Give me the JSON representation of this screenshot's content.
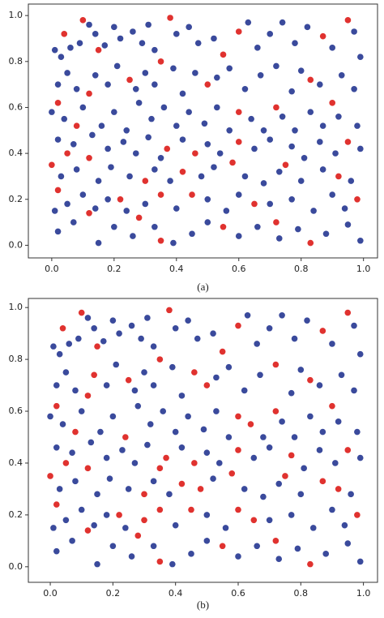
{
  "chart_data": [
    {
      "type": "scatter",
      "caption": "(a)",
      "xlim": [
        -0.075,
        1.045
      ],
      "ylim": [
        -0.055,
        1.05
      ],
      "xticks": [
        {
          "value": 0,
          "label": "0.0"
        },
        0.2,
        0.4,
        0.6,
        0.8,
        {
          "value": 1,
          "label": "1.0"
        }
      ],
      "yticks": [
        {
          "value": 0,
          "label": "0.0"
        },
        0.2,
        0.4,
        0.6,
        0.8,
        {
          "value": 1,
          "label": "1.0"
        }
      ],
      "series": [
        {
          "color": "#3a4a9c",
          "x": [
            0.01,
            0.03,
            0.06,
            0.09,
            0.12,
            0.14,
            0.17,
            0.2,
            0.22,
            0.26,
            0.29,
            0.31,
            0.33,
            0.4,
            0.44,
            0.47,
            0.52,
            0.63,
            0.66,
            0.7,
            0.74,
            0.78,
            0.82,
            0.9,
            0.97,
            0.99,
            0.02,
            0.05,
            0.08,
            0.14,
            0.18,
            0.21,
            0.27,
            0.3,
            0.33,
            0.39,
            0.42,
            0.46,
            0.53,
            0.57,
            0.62,
            0.67,
            0.72,
            0.77,
            0.8,
            0.86,
            0.93,
            0.97,
            0.0,
            0.04,
            0.1,
            0.16,
            0.2,
            0.24,
            0.28,
            0.32,
            0.36,
            0.4,
            0.44,
            0.49,
            0.53,
            0.57,
            0.64,
            0.68,
            0.74,
            0.78,
            0.83,
            0.87,
            0.92,
            0.98,
            0.02,
            0.07,
            0.13,
            0.18,
            0.23,
            0.27,
            0.31,
            0.35,
            0.42,
            0.5,
            0.54,
            0.65,
            0.7,
            0.77,
            0.81,
            0.86,
            0.91,
            0.99,
            0.03,
            0.08,
            0.15,
            0.19,
            0.25,
            0.33,
            0.38,
            0.48,
            0.52,
            0.62,
            0.68,
            0.73,
            0.8,
            0.87,
            0.96,
            0.01,
            0.05,
            0.1,
            0.14,
            0.18,
            0.24,
            0.3,
            0.4,
            0.5,
            0.56,
            0.6,
            0.7,
            0.77,
            0.84,
            0.9,
            0.94,
            0.02,
            0.07,
            0.15,
            0.2,
            0.26,
            0.33,
            0.39,
            0.45,
            0.5,
            0.6,
            0.66,
            0.73,
            0.79,
            0.88,
            0.95,
            0.99
          ],
          "values": [
            0.85,
            0.82,
            0.86,
            0.88,
            0.96,
            0.92,
            0.87,
            0.95,
            0.9,
            0.93,
            0.88,
            0.96,
            0.85,
            0.92,
            0.95,
            0.88,
            0.9,
            0.97,
            0.86,
            0.92,
            0.97,
            0.88,
            0.95,
            0.86,
            0.93,
            0.82,
            0.7,
            0.75,
            0.68,
            0.74,
            0.7,
            0.78,
            0.68,
            0.75,
            0.7,
            0.77,
            0.66,
            0.75,
            0.73,
            0.77,
            0.68,
            0.74,
            0.78,
            0.67,
            0.76,
            0.7,
            0.74,
            0.68,
            0.58,
            0.55,
            0.6,
            0.52,
            0.58,
            0.5,
            0.62,
            0.55,
            0.6,
            0.52,
            0.58,
            0.53,
            0.6,
            0.5,
            0.55,
            0.5,
            0.56,
            0.5,
            0.58,
            0.52,
            0.56,
            0.52,
            0.46,
            0.44,
            0.48,
            0.42,
            0.45,
            0.4,
            0.47,
            0.38,
            0.46,
            0.44,
            0.4,
            0.42,
            0.46,
            0.43,
            0.38,
            0.45,
            0.4,
            0.42,
            0.3,
            0.33,
            0.28,
            0.34,
            0.3,
            0.33,
            0.28,
            0.3,
            0.34,
            0.3,
            0.27,
            0.32,
            0.28,
            0.33,
            0.28,
            0.15,
            0.18,
            0.22,
            0.16,
            0.2,
            0.15,
            0.18,
            0.16,
            0.2,
            0.15,
            0.22,
            0.18,
            0.2,
            0.15,
            0.22,
            0.16,
            0.06,
            0.1,
            0.01,
            0.08,
            0.04,
            0.08,
            0.01,
            0.05,
            0.1,
            0.04,
            0.08,
            0.03,
            0.07,
            0.05,
            0.09,
            0.02
          ]
        },
        {
          "color": "#e0322f",
          "x": [
            0.1,
            0.38,
            0.95,
            0.04,
            0.6,
            0.87,
            0.15,
            0.35,
            0.55,
            0.25,
            0.5,
            0.83,
            0.12,
            0.02,
            0.72,
            0.6,
            0.9,
            0.08,
            0.37,
            0.05,
            0.6,
            0.95,
            0.12,
            0.46,
            0.58,
            0.0,
            0.75,
            0.42,
            0.92,
            0.3,
            0.02,
            0.22,
            0.35,
            0.45,
            0.65,
            0.98,
            0.28,
            0.55,
            0.72,
            0.35,
            0.83,
            0.12
          ],
          "values": [
            0.98,
            0.99,
            0.98,
            0.92,
            0.93,
            0.91,
            0.85,
            0.8,
            0.83,
            0.72,
            0.7,
            0.72,
            0.66,
            0.62,
            0.6,
            0.58,
            0.62,
            0.52,
            0.42,
            0.4,
            0.45,
            0.45,
            0.38,
            0.4,
            0.36,
            0.35,
            0.35,
            0.32,
            0.3,
            0.28,
            0.24,
            0.2,
            0.22,
            0.22,
            0.18,
            0.2,
            0.12,
            0.08,
            0.1,
            0.02,
            0.01,
            0.14
          ]
        }
      ]
    },
    {
      "type": "scatter",
      "caption": "(b)",
      "xlim": [
        -0.07,
        1.045
      ],
      "ylim": [
        -0.06,
        1.035
      ],
      "xticks": [
        {
          "value": 0,
          "label": "0.0"
        },
        0.2,
        0.4,
        0.6,
        0.8,
        {
          "value": 1,
          "label": "1.0"
        }
      ],
      "yticks": [
        {
          "value": 0,
          "label": "0.0"
        },
        0.2,
        0.4,
        0.6,
        0.8,
        {
          "value": 1,
          "label": "1.0"
        }
      ],
      "series": [
        {
          "color": "#3a4a9c",
          "x": [
            0.01,
            0.03,
            0.06,
            0.09,
            0.12,
            0.14,
            0.17,
            0.2,
            0.22,
            0.26,
            0.29,
            0.31,
            0.33,
            0.4,
            0.44,
            0.47,
            0.52,
            0.63,
            0.66,
            0.7,
            0.74,
            0.78,
            0.82,
            0.9,
            0.97,
            0.99,
            0.02,
            0.05,
            0.08,
            0.18,
            0.21,
            0.27,
            0.3,
            0.33,
            0.39,
            0.42,
            0.53,
            0.57,
            0.62,
            0.67,
            0.77,
            0.8,
            0.86,
            0.93,
            0.97,
            0.0,
            0.04,
            0.1,
            0.16,
            0.2,
            0.28,
            0.32,
            0.36,
            0.4,
            0.44,
            0.49,
            0.53,
            0.57,
            0.68,
            0.74,
            0.78,
            0.83,
            0.87,
            0.92,
            0.98,
            0.02,
            0.07,
            0.13,
            0.18,
            0.23,
            0.27,
            0.31,
            0.42,
            0.5,
            0.54,
            0.65,
            0.7,
            0.81,
            0.86,
            0.91,
            0.99,
            0.03,
            0.08,
            0.15,
            0.19,
            0.25,
            0.33,
            0.38,
            0.52,
            0.62,
            0.68,
            0.73,
            0.8,
            0.96,
            0.01,
            0.05,
            0.1,
            0.14,
            0.18,
            0.24,
            0.4,
            0.5,
            0.56,
            0.7,
            0.77,
            0.84,
            0.9,
            0.94,
            0.02,
            0.07,
            0.15,
            0.2,
            0.26,
            0.33,
            0.39,
            0.45,
            0.5,
            0.6,
            0.66,
            0.73,
            0.79,
            0.88,
            0.95,
            0.99
          ],
          "values": [
            0.85,
            0.82,
            0.86,
            0.88,
            0.96,
            0.92,
            0.87,
            0.95,
            0.9,
            0.93,
            0.88,
            0.96,
            0.85,
            0.92,
            0.95,
            0.88,
            0.9,
            0.97,
            0.86,
            0.92,
            0.97,
            0.88,
            0.95,
            0.86,
            0.93,
            0.82,
            0.7,
            0.75,
            0.68,
            0.7,
            0.78,
            0.68,
            0.75,
            0.7,
            0.77,
            0.66,
            0.73,
            0.77,
            0.68,
            0.74,
            0.67,
            0.76,
            0.7,
            0.74,
            0.68,
            0.58,
            0.55,
            0.6,
            0.52,
            0.58,
            0.62,
            0.55,
            0.6,
            0.52,
            0.58,
            0.53,
            0.6,
            0.5,
            0.5,
            0.56,
            0.5,
            0.58,
            0.52,
            0.56,
            0.52,
            0.46,
            0.44,
            0.48,
            0.42,
            0.45,
            0.4,
            0.47,
            0.46,
            0.44,
            0.4,
            0.42,
            0.46,
            0.38,
            0.45,
            0.4,
            0.42,
            0.3,
            0.33,
            0.28,
            0.34,
            0.3,
            0.33,
            0.28,
            0.34,
            0.3,
            0.27,
            0.32,
            0.28,
            0.28,
            0.15,
            0.18,
            0.22,
            0.16,
            0.2,
            0.15,
            0.16,
            0.2,
            0.15,
            0.18,
            0.2,
            0.15,
            0.22,
            0.16,
            0.06,
            0.1,
            0.01,
            0.08,
            0.04,
            0.08,
            0.01,
            0.05,
            0.1,
            0.04,
            0.08,
            0.03,
            0.07,
            0.05,
            0.09,
            0.02
          ]
        },
        {
          "color": "#e0322f",
          "x": [
            0.1,
            0.38,
            0.95,
            0.04,
            0.6,
            0.87,
            0.15,
            0.35,
            0.55,
            0.25,
            0.5,
            0.83,
            0.12,
            0.02,
            0.72,
            0.6,
            0.9,
            0.08,
            0.37,
            0.05,
            0.6,
            0.95,
            0.12,
            0.46,
            0.58,
            0.0,
            0.75,
            0.42,
            0.92,
            0.3,
            0.02,
            0.22,
            0.35,
            0.45,
            0.65,
            0.98,
            0.28,
            0.55,
            0.72,
            0.35,
            0.83,
            0.12,
            0.14,
            0.46,
            0.72,
            0.24,
            0.64,
            0.35,
            0.77,
            0.48,
            0.87,
            0.3,
            0.6
          ],
          "values": [
            0.98,
            0.99,
            0.98,
            0.92,
            0.93,
            0.91,
            0.85,
            0.8,
            0.83,
            0.72,
            0.7,
            0.72,
            0.66,
            0.62,
            0.6,
            0.58,
            0.62,
            0.52,
            0.42,
            0.4,
            0.45,
            0.45,
            0.38,
            0.4,
            0.36,
            0.35,
            0.35,
            0.32,
            0.3,
            0.28,
            0.24,
            0.2,
            0.22,
            0.22,
            0.18,
            0.2,
            0.12,
            0.08,
            0.1,
            0.02,
            0.01,
            0.14,
            0.74,
            0.75,
            0.78,
            0.5,
            0.55,
            0.38,
            0.43,
            0.3,
            0.33,
            0.18,
            0.22
          ]
        }
      ]
    }
  ]
}
